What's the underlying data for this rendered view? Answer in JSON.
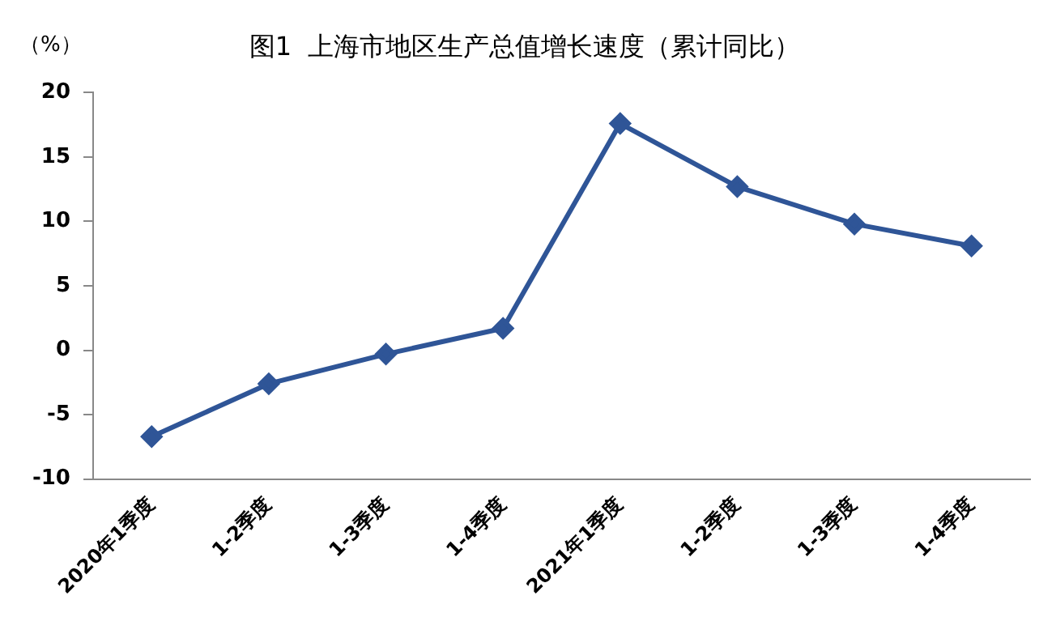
{
  "chart_data": {
    "type": "line",
    "title": "图1  上海市地区生产总值增长速度（累计同比）",
    "ylabel": "（%）",
    "categories": [
      "2020年1季度",
      "1-2季度",
      "1-3季度",
      "1-4季度",
      "2021年1季度",
      "1-2季度",
      "1-3季度",
      "1-4季度"
    ],
    "series": [
      {
        "color": "#2f5597",
        "values": [
          -6.7,
          -2.6,
          -0.3,
          1.7,
          17.6,
          12.7,
          9.8,
          8.1
        ]
      }
    ],
    "ylim": [
      -10,
      20
    ],
    "yticks": [
      -10,
      -5,
      0,
      5,
      10,
      15,
      20
    ],
    "grid": false,
    "legend": false,
    "marker": "diamond",
    "line_style": "solid"
  }
}
